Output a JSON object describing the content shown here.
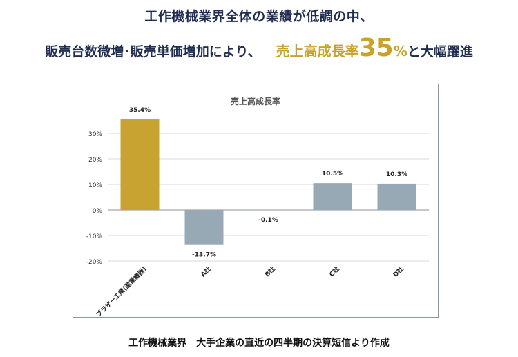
{
  "headline": {
    "line1": "工作機械業界全体の業績が低調の中、",
    "line2_lead": "販売台数微増･販売単価増加により、",
    "line2_highlight": "売上高成長率",
    "line2_number": "35",
    "line2_pct": "%",
    "line2_tail": "と大幅躍進"
  },
  "chart_data": {
    "type": "bar",
    "title": "売上高成長率",
    "categories": [
      "ブラザー工業(産業機器)",
      "A社",
      "B社",
      "C社",
      "D社"
    ],
    "values": [
      35.4,
      -13.7,
      -0.1,
      10.5,
      10.3
    ],
    "value_labels": [
      "35.4%",
      "-13.7%",
      "-0.1%",
      "10.5%",
      "10.3%"
    ],
    "highlight_index": 0,
    "colors": {
      "highlight": "#c9a332",
      "other": "#97a9b5",
      "grid": "#d9d9d9",
      "zero": "#8f8f8f"
    },
    "ylim": [
      -20,
      35
    ],
    "yticks": [
      30,
      20,
      10,
      0,
      -10,
      -20
    ],
    "ytick_labels": [
      "30%",
      "20%",
      "10%",
      "0%",
      "-10%",
      "-20%"
    ],
    "grid": true,
    "legend": "none",
    "xlabel": "",
    "ylabel": ""
  },
  "footer": {
    "note": "工作機械業界　大手企業の直近の四半期の決算短信より作成"
  }
}
